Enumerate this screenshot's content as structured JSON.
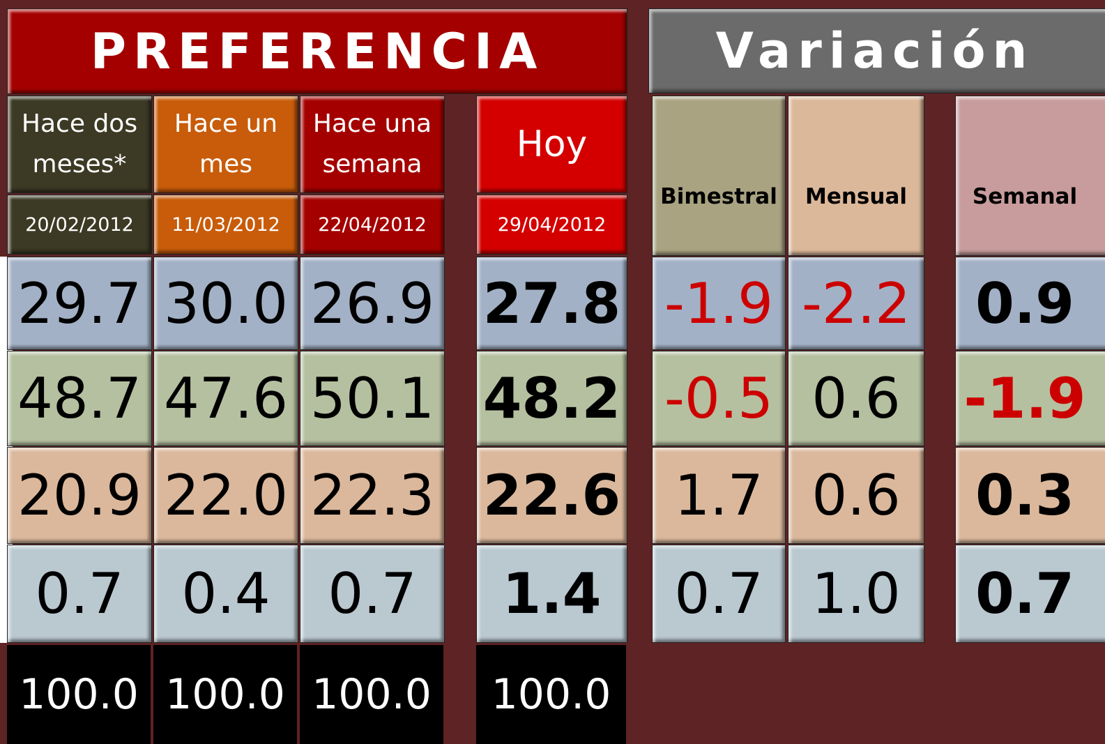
{
  "preferencia": {
    "title": "PREFERENCIA",
    "columns": [
      {
        "header": "Hace dos meses*",
        "date": "20/02/2012",
        "values": [
          "29.7",
          "48.7",
          "20.9",
          "0.7"
        ],
        "total": "100.0"
      },
      {
        "header": "Hace un mes",
        "date": "11/03/2012",
        "values": [
          "30.0",
          "47.6",
          "22.0",
          "0.4"
        ],
        "total": "100.0"
      },
      {
        "header": "Hace una semana",
        "date": "22/04/2012",
        "values": [
          "26.9",
          "50.1",
          "22.3",
          "0.7"
        ],
        "total": "100.0"
      },
      {
        "header": "Hoy",
        "date": "29/04/2012",
        "values": [
          "27.8",
          "48.2",
          "22.6",
          "1.4"
        ],
        "total": "100.0"
      }
    ]
  },
  "variacion": {
    "title": "Variación",
    "columns": [
      {
        "header": "Bimestral",
        "values": [
          "-1.9",
          "-0.5",
          "1.7",
          "0.7"
        ]
      },
      {
        "header": "Mensual",
        "values": [
          "-2.2",
          "0.6",
          "0.6",
          "1.0"
        ]
      },
      {
        "header": "Semanal",
        "values": [
          "0.9",
          "-1.9",
          "0.3",
          "0.7"
        ]
      }
    ]
  }
}
